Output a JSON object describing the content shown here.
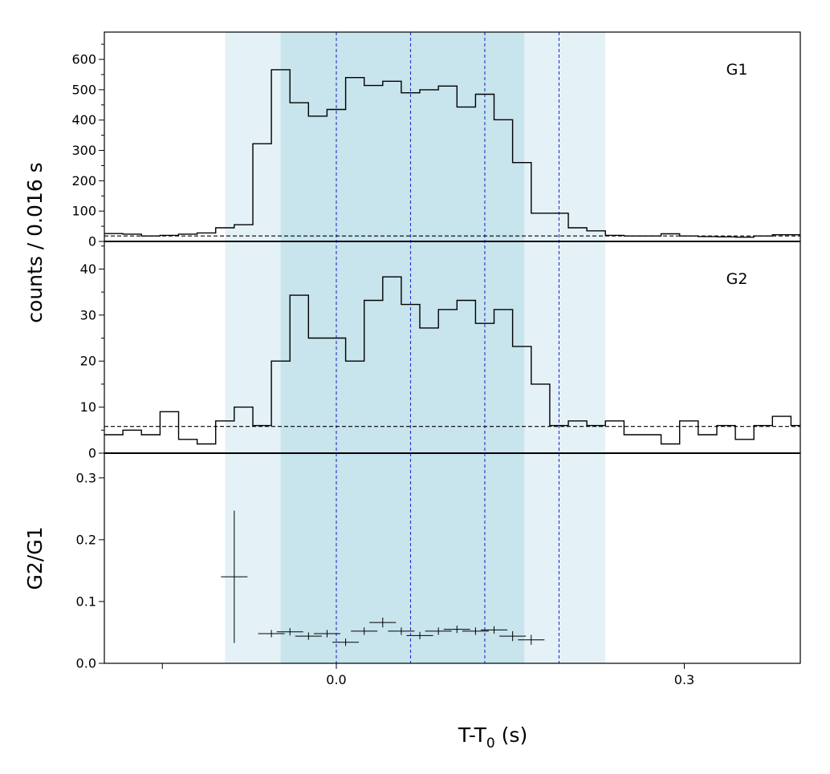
{
  "chart_data": {
    "type": "line",
    "xlabel": "T-T",
    "xlabel_sub": "0",
    "xlabel_unit": " (s)",
    "shared_ylabel": "counts /  0.016 s",
    "xlim": [
      -0.2,
      0.4
    ],
    "x_ticks": [
      {
        "value": 0.0,
        "label": "0.0"
      },
      {
        "value": 0.3,
        "label": "0.3"
      }
    ],
    "x_minor_ticks": [
      -0.15
    ],
    "bin_edges": [
      -0.2,
      -0.184,
      -0.168,
      -0.152,
      -0.136,
      -0.12,
      -0.104,
      -0.088,
      -0.072,
      -0.056,
      -0.04,
      -0.024,
      -0.008,
      0.008,
      0.024,
      0.04,
      0.056,
      0.072,
      0.088,
      0.104,
      0.12,
      0.136,
      0.152,
      0.168,
      0.184,
      0.2,
      0.216,
      0.232,
      0.248,
      0.264,
      0.28,
      0.296,
      0.312,
      0.328,
      0.344,
      0.36,
      0.376,
      0.392,
      0.408
    ],
    "shaded_intervals": [
      {
        "start": -0.096,
        "end": 0.232,
        "color": "#e4f2f7"
      },
      {
        "start": -0.048,
        "end": 0.162,
        "color": "#c8e4ec"
      }
    ],
    "vlines": [
      0.0,
      0.064,
      0.128,
      0.192
    ],
    "vline_color": "#2233cc",
    "panels": [
      {
        "label": "G1",
        "ylim": [
          0,
          690
        ],
        "y_ticks": [
          0,
          100,
          200,
          300,
          400,
          500,
          600
        ],
        "y_minor_step": 50,
        "background": 18,
        "series": [
          {
            "values": [
              26,
              24,
              18,
              20,
              24,
              28,
              45,
              55,
              322,
              566,
              457,
              413,
              435,
              540,
              514,
              528,
              490,
              500,
              512,
              443,
              485,
              401,
              260,
              93,
              93,
              45,
              35,
              20,
              18,
              18,
              25,
              18,
              16,
              15,
              14,
              18,
              22,
              22
            ]
          }
        ]
      },
      {
        "label": "G2",
        "ylim": [
          0,
          46
        ],
        "y_ticks": [
          0,
          10,
          20,
          30,
          40
        ],
        "y_minor_step": 5,
        "background": 5.8,
        "series": [
          {
            "values": [
              4,
              5,
              4,
              9,
              3,
              2,
              7,
              10,
              6,
              20,
              34.3,
              25,
              25,
              20,
              33.2,
              38.3,
              32.3,
              27.2,
              31.2,
              33.2,
              28.2,
              31.2,
              23.2,
              15,
              6,
              7,
              6,
              7,
              4,
              4,
              2,
              7,
              4,
              6,
              3,
              6,
              8,
              6
            ]
          }
        ]
      },
      {
        "label": "",
        "ylabel": "G2/G1",
        "ylim": [
          0,
          0.34
        ],
        "y_ticks": [
          0.0,
          0.1,
          0.2,
          0.3
        ],
        "y_tick_labels": [
          "0.0",
          "0.1",
          "0.2",
          "0.3"
        ],
        "points": [
          {
            "x": -0.088,
            "y": 0.14,
            "xerr": 0.016,
            "yerr": 0.107
          },
          {
            "x": -0.056,
            "y": 0.048,
            "xerr": 0.016,
            "yerr": 0.006
          },
          {
            "x": -0.04,
            "y": 0.051,
            "xerr": 0.016,
            "yerr": 0.006
          },
          {
            "x": -0.024,
            "y": 0.044,
            "xerr": 0.016,
            "yerr": 0.006
          },
          {
            "x": -0.008,
            "y": 0.048,
            "xerr": 0.016,
            "yerr": 0.006
          },
          {
            "x": 0.008,
            "y": 0.034,
            "xerr": 0.016,
            "yerr": 0.006
          },
          {
            "x": 0.024,
            "y": 0.052,
            "xerr": 0.016,
            "yerr": 0.006
          },
          {
            "x": 0.04,
            "y": 0.066,
            "xerr": 0.016,
            "yerr": 0.008
          },
          {
            "x": 0.056,
            "y": 0.052,
            "xerr": 0.016,
            "yerr": 0.006
          },
          {
            "x": 0.072,
            "y": 0.045,
            "xerr": 0.016,
            "yerr": 0.006
          },
          {
            "x": 0.088,
            "y": 0.052,
            "xerr": 0.016,
            "yerr": 0.006
          },
          {
            "x": 0.104,
            "y": 0.055,
            "xerr": 0.016,
            "yerr": 0.006
          },
          {
            "x": 0.12,
            "y": 0.052,
            "xerr": 0.016,
            "yerr": 0.006
          },
          {
            "x": 0.136,
            "y": 0.054,
            "xerr": 0.016,
            "yerr": 0.006
          },
          {
            "x": 0.152,
            "y": 0.044,
            "xerr": 0.016,
            "yerr": 0.008
          },
          {
            "x": 0.168,
            "y": 0.038,
            "xerr": 0.016,
            "yerr": 0.008
          }
        ]
      }
    ]
  }
}
